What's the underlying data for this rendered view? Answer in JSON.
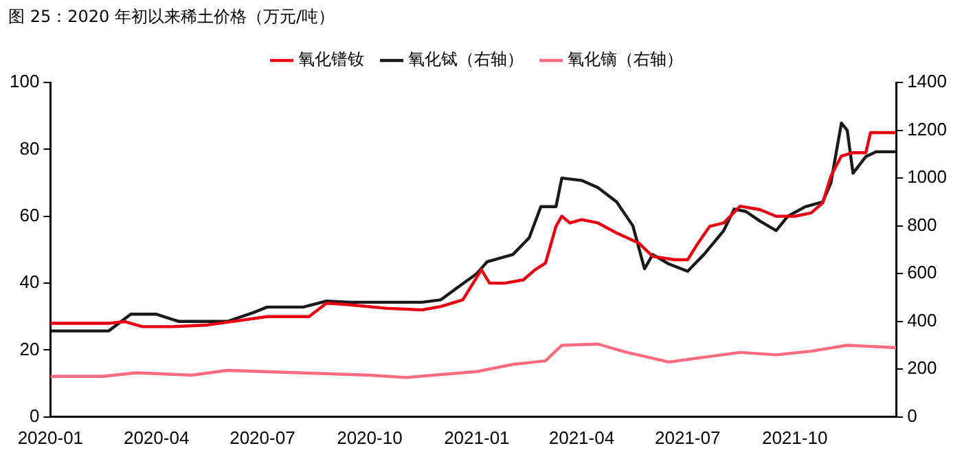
{
  "chart_data": {
    "type": "line",
    "title": "图 25：2020 年初以来稀土价格（万元/吨）",
    "xlim": [
      "2020-01-01",
      "2021-12-27"
    ],
    "xticks": [
      "2020-01",
      "2020-04",
      "2020-07",
      "2020-10",
      "2021-01",
      "2021-04",
      "2021-07",
      "2021-10"
    ],
    "ylim": [
      0,
      100
    ],
    "yticks": [
      0,
      20,
      40,
      60,
      80,
      100
    ],
    "y2lim": [
      0,
      1400
    ],
    "y2ticks": [
      0,
      200,
      400,
      600,
      800,
      1000,
      1200,
      1400
    ],
    "legend": "top",
    "grid": false,
    "marker": "none",
    "line_style": "solid",
    "series": [
      {
        "name": "氧化镨钕",
        "color": "#e60012",
        "x": [
          "2020-01-01",
          "2020-02-20",
          "2020-03-05",
          "2020-03-20",
          "2020-04-15",
          "2020-05-15",
          "2020-06-15",
          "2020-07-05",
          "2020-08-10",
          "2020-08-25",
          "2020-09-15",
          "2020-10-15",
          "2020-11-15",
          "2020-12-01",
          "2020-12-20",
          "2021-01-05",
          "2021-01-12",
          "2021-01-25",
          "2021-02-10",
          "2021-02-20",
          "2021-03-01",
          "2021-03-10",
          "2021-03-15",
          "2021-03-22",
          "2021-04-01",
          "2021-04-15",
          "2021-05-01",
          "2021-05-20",
          "2021-06-01",
          "2021-06-20",
          "2021-07-01",
          "2021-07-10",
          "2021-07-20",
          "2021-08-01",
          "2021-08-15",
          "2021-09-01",
          "2021-09-15",
          "2021-10-01",
          "2021-10-15",
          "2021-10-25",
          "2021-11-01",
          "2021-11-10",
          "2021-11-20",
          "2021-12-01",
          "2021-12-05",
          "2021-12-27"
        ],
        "values": [
          28,
          28,
          28.5,
          27,
          27,
          27.5,
          29,
          30,
          30,
          34,
          33.5,
          32.5,
          32,
          33,
          35,
          44,
          40,
          40,
          41,
          44,
          46,
          57,
          60,
          58,
          59,
          58,
          55,
          52,
          48,
          47,
          47,
          52,
          57,
          58,
          63,
          62,
          60,
          60,
          61,
          64,
          72,
          78,
          79,
          79,
          85,
          85
        ]
      },
      {
        "name": "氧化铽（右轴）",
        "color": "#1a1a1a",
        "axis": "y2",
        "x": [
          "2020-01-01",
          "2020-02-20",
          "2020-03-10",
          "2020-04-01",
          "2020-04-20",
          "2020-06-01",
          "2020-06-25",
          "2020-07-05",
          "2020-08-05",
          "2020-08-25",
          "2020-09-15",
          "2020-11-15",
          "2020-12-01",
          "2020-12-15",
          "2021-01-01",
          "2021-01-10",
          "2021-02-01",
          "2021-02-15",
          "2021-02-25",
          "2021-03-10",
          "2021-03-15",
          "2021-04-01",
          "2021-04-15",
          "2021-05-01",
          "2021-05-15",
          "2021-05-25",
          "2021-06-01",
          "2021-06-15",
          "2021-07-01",
          "2021-07-15",
          "2021-08-01",
          "2021-08-10",
          "2021-08-20",
          "2021-09-01",
          "2021-09-15",
          "2021-09-25",
          "2021-10-10",
          "2021-10-25",
          "2021-11-01",
          "2021-11-10",
          "2021-11-15",
          "2021-11-20",
          "2021-12-01",
          "2021-12-10",
          "2021-12-27"
        ],
        "values": [
          360,
          360,
          430,
          430,
          400,
          400,
          440,
          460,
          460,
          485,
          480,
          480,
          490,
          540,
          600,
          650,
          680,
          750,
          880,
          880,
          1000,
          990,
          960,
          900,
          800,
          620,
          680,
          640,
          610,
          680,
          780,
          870,
          860,
          820,
          780,
          840,
          880,
          900,
          980,
          1230,
          1200,
          1020,
          1090,
          1110,
          1110
        ]
      },
      {
        "name": "氧化镝（右轴）",
        "color": "#ff6b7f",
        "axis": "y2",
        "x": [
          "2020-01-01",
          "2020-02-15",
          "2020-03-15",
          "2020-05-01",
          "2020-06-01",
          "2020-08-01",
          "2020-10-01",
          "2020-11-01",
          "2021-01-01",
          "2021-02-01",
          "2021-03-01",
          "2021-03-15",
          "2021-04-15",
          "2021-05-10",
          "2021-06-15",
          "2021-07-15",
          "2021-08-15",
          "2021-09-15",
          "2021-10-15",
          "2021-11-15",
          "2021-12-27"
        ],
        "values": [
          170,
          170,
          185,
          175,
          195,
          185,
          175,
          165,
          190,
          220,
          235,
          300,
          305,
          270,
          230,
          250,
          270,
          260,
          275,
          300,
          290
        ]
      }
    ]
  }
}
